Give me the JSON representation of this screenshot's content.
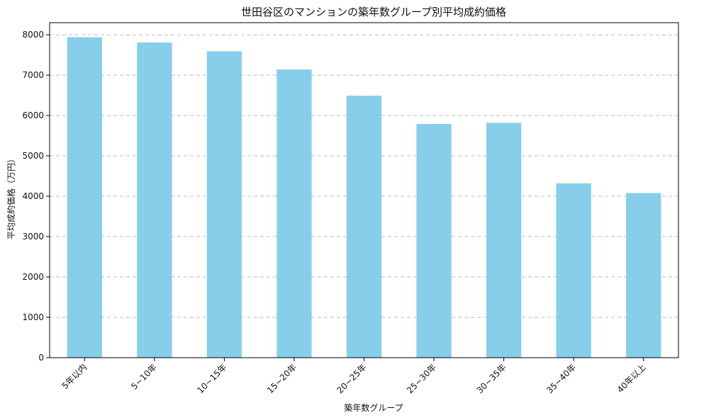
{
  "chart_data": {
    "type": "bar",
    "title": "世田谷区のマンションの築年数グループ別平均成約価格",
    "xlabel": "築年数グループ",
    "ylabel": "平均成約価格（万円）",
    "categories": [
      "5年以内",
      "5~10年",
      "10~15年",
      "15~20年",
      "20~25年",
      "25~30年",
      "30~35年",
      "35~40年",
      "40年以上"
    ],
    "values": [
      7940,
      7810,
      7590,
      7140,
      6490,
      5790,
      5820,
      4320,
      4080
    ],
    "ylim": [
      0,
      8300
    ],
    "yticks": [
      0,
      1000,
      2000,
      3000,
      4000,
      5000,
      6000,
      7000,
      8000
    ],
    "grid": "horizontal-dashed",
    "legend": "none",
    "bar_color": "#87CEEB",
    "grid_color": "#bdbdbd"
  }
}
